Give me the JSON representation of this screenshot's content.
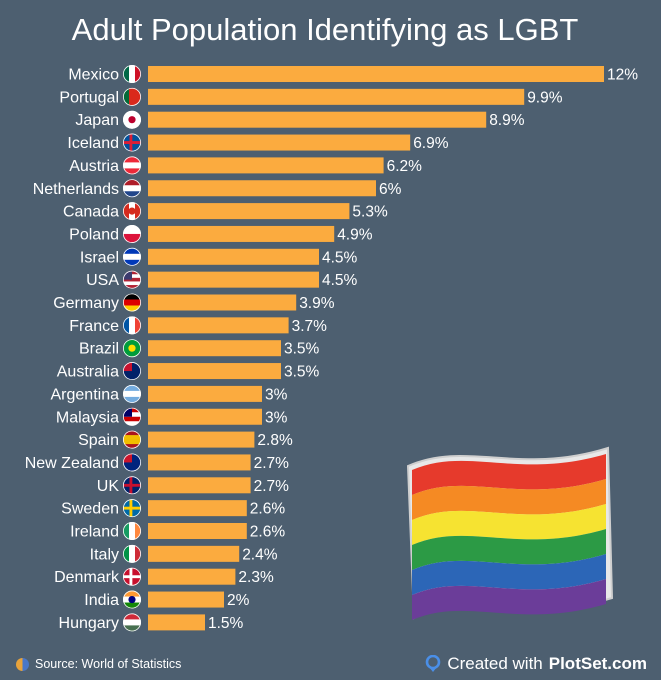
{
  "chart_data": {
    "type": "bar",
    "orientation": "horizontal",
    "title": "Adult Population Identifying as LGBT",
    "xlabel": "",
    "ylabel": "",
    "xlim": [
      0,
      12
    ],
    "categories": [
      "Mexico",
      "Portugal",
      "Japan",
      "Iceland",
      "Austria",
      "Netherlands",
      "Canada",
      "Poland",
      "Israel",
      "USA",
      "Germany",
      "France",
      "Brazil",
      "Australia",
      "Argentina",
      "Malaysia",
      "Spain",
      "New Zealand",
      "UK",
      "Sweden",
      "Ireland",
      "Italy",
      "Denmark",
      "India",
      "Hungary"
    ],
    "values": [
      12,
      9.9,
      8.9,
      6.9,
      6.2,
      6,
      5.3,
      4.9,
      4.5,
      4.5,
      3.9,
      3.7,
      3.5,
      3.5,
      3,
      3,
      2.8,
      2.7,
      2.7,
      2.6,
      2.6,
      2.4,
      2.3,
      2,
      1.5
    ],
    "value_labels": [
      "12%",
      "9.9%",
      "8.9%",
      "6.9%",
      "6.2%",
      "6%",
      "5.3%",
      "4.9%",
      "4.5%",
      "4.5%",
      "3.9%",
      "3.7%",
      "3.5%",
      "3.5%",
      "3%",
      "3%",
      "2.8%",
      "2.7%",
      "2.7%",
      "2.6%",
      "2.6%",
      "2.4%",
      "2.3%",
      "2%",
      "1.5%"
    ],
    "bar_color": "#fbab3f",
    "background_color": "#4d5f70",
    "flags": [
      {
        "icon": "mexico-flag-icon",
        "stripes": [
          "#006847",
          "#ffffff",
          "#ce1126"
        ],
        "dir": "v"
      },
      {
        "icon": "portugal-flag-icon",
        "stripes": [
          "#046a38",
          "#da291c",
          "#da291c"
        ],
        "dir": "v"
      },
      {
        "icon": "japan-flag-icon",
        "stripes": [
          "#ffffff"
        ],
        "dir": "h",
        "dot": "#bc002d"
      },
      {
        "icon": "iceland-flag-icon",
        "stripes": [
          "#02529c"
        ],
        "dir": "h",
        "cross": "#dc1e35"
      },
      {
        "icon": "austria-flag-icon",
        "stripes": [
          "#ed2939",
          "#ffffff",
          "#ed2939"
        ],
        "dir": "h"
      },
      {
        "icon": "netherlands-flag-icon",
        "stripes": [
          "#ae1c28",
          "#ffffff",
          "#21468b"
        ],
        "dir": "h"
      },
      {
        "icon": "canada-flag-icon",
        "stripes": [
          "#d52b1e",
          "#ffffff",
          "#d52b1e"
        ],
        "dir": "v",
        "dot": "#d52b1e"
      },
      {
        "icon": "poland-flag-icon",
        "stripes": [
          "#ffffff",
          "#dc143c"
        ],
        "dir": "h"
      },
      {
        "icon": "israel-flag-icon",
        "stripes": [
          "#0038b8",
          "#ffffff",
          "#0038b8"
        ],
        "dir": "h"
      },
      {
        "icon": "usa-flag-icon",
        "stripes": [
          "#b22234",
          "#ffffff",
          "#b22234",
          "#ffffff",
          "#b22234"
        ],
        "dir": "h",
        "canton": "#3c3b6e"
      },
      {
        "icon": "germany-flag-icon",
        "stripes": [
          "#000000",
          "#dd0000",
          "#ffce00"
        ],
        "dir": "h"
      },
      {
        "icon": "france-flag-icon",
        "stripes": [
          "#0055a4",
          "#ffffff",
          "#ef4135"
        ],
        "dir": "v"
      },
      {
        "icon": "brazil-flag-icon",
        "stripes": [
          "#009c3b"
        ],
        "dir": "h",
        "dot": "#ffdf00"
      },
      {
        "icon": "australia-flag-icon",
        "stripes": [
          "#012169"
        ],
        "dir": "h",
        "canton": "#c8102e"
      },
      {
        "icon": "argentina-flag-icon",
        "stripes": [
          "#74acdf",
          "#ffffff",
          "#74acdf"
        ],
        "dir": "h"
      },
      {
        "icon": "malaysia-flag-icon",
        "stripes": [
          "#cc0001",
          "#ffffff",
          "#cc0001",
          "#ffffff"
        ],
        "dir": "h",
        "canton": "#010066"
      },
      {
        "icon": "spain-flag-icon",
        "stripes": [
          "#aa151b",
          "#f1bf00",
          "#f1bf00",
          "#aa151b"
        ],
        "dir": "h"
      },
      {
        "icon": "new-zealand-flag-icon",
        "stripes": [
          "#00247d"
        ],
        "dir": "h",
        "canton": "#cc142b"
      },
      {
        "icon": "uk-flag-icon",
        "stripes": [
          "#012169"
        ],
        "dir": "h",
        "cross": "#c8102e"
      },
      {
        "icon": "sweden-flag-icon",
        "stripes": [
          "#006aa7"
        ],
        "dir": "h",
        "cross": "#fecc00"
      },
      {
        "icon": "ireland-flag-icon",
        "stripes": [
          "#169b62",
          "#ffffff",
          "#ff883e"
        ],
        "dir": "v"
      },
      {
        "icon": "italy-flag-icon",
        "stripes": [
          "#009246",
          "#ffffff",
          "#ce2b37"
        ],
        "dir": "v"
      },
      {
        "icon": "denmark-flag-icon",
        "stripes": [
          "#c8102e"
        ],
        "dir": "h",
        "cross": "#ffffff"
      },
      {
        "icon": "india-flag-icon",
        "stripes": [
          "#ff9933",
          "#ffffff",
          "#138808"
        ],
        "dir": "h",
        "dot": "#000080"
      },
      {
        "icon": "hungary-flag-icon",
        "stripes": [
          "#ce2939",
          "#ffffff",
          "#477050"
        ],
        "dir": "h"
      }
    ],
    "decoration": {
      "icon": "rainbow-pride-flag-icon",
      "colors": [
        "#e63a2c",
        "#f58a23",
        "#f6e331",
        "#2c9a45",
        "#2c66b7",
        "#6b3d99"
      ]
    }
  },
  "footer": {
    "source": "Source: World of Statistics",
    "created_prefix": "Created with",
    "brand": "PlotSet.com"
  }
}
